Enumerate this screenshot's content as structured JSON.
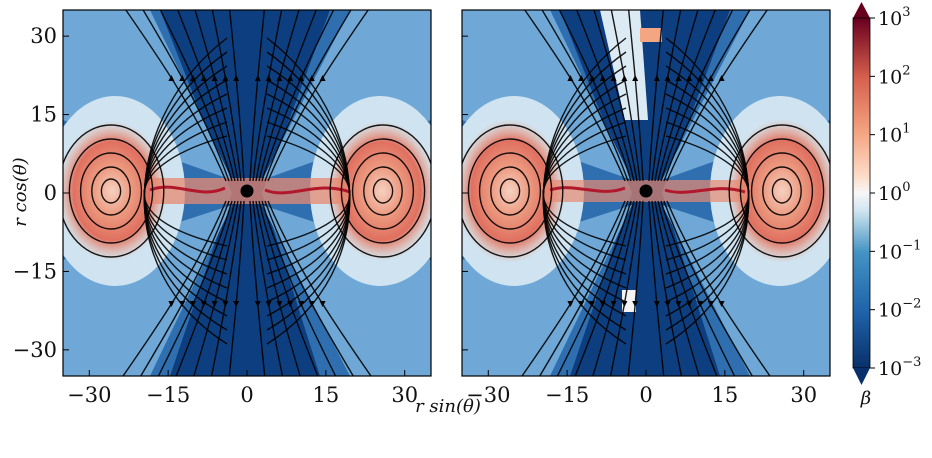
{
  "chart_data": {
    "type": "heatmap",
    "panels": [
      {
        "xlim": [
          -35,
          35
        ],
        "ylim": [
          -35,
          35
        ]
      },
      {
        "xlim": [
          -35,
          35
        ],
        "ylim": [
          -35,
          35
        ]
      }
    ],
    "xlabel": "r sin(θ)",
    "ylabel": "r cos(θ)",
    "xticks": [
      "−30",
      "−15",
      "0",
      "15",
      "30"
    ],
    "xtick_values": [
      -30,
      -15,
      0,
      15,
      30
    ],
    "yticks": [
      "30",
      "15",
      "0",
      "−15",
      "−30"
    ],
    "ytick_values": [
      30,
      15,
      0,
      -15,
      -30
    ],
    "colorbar": {
      "label": "β",
      "scale": "log",
      "range": [
        0.001,
        1000
      ],
      "ticks": [
        {
          "base": "10",
          "exp": "3",
          "value": 1000
        },
        {
          "base": "10",
          "exp": "2",
          "value": 100
        },
        {
          "base": "10",
          "exp": "1",
          "value": 10
        },
        {
          "base": "10",
          "exp": "0",
          "value": 1
        },
        {
          "base": "10",
          "exp": "−1",
          "value": 0.1
        },
        {
          "base": "10",
          "exp": "−2",
          "value": 0.01
        },
        {
          "base": "10",
          "exp": "−3",
          "value": 0.001
        }
      ],
      "colormap": "RdBu_r",
      "colors": {
        "low": "#08306b",
        "mid": "#f7f7f7",
        "high": "#67001f"
      }
    },
    "central_object": "black-hole-marker",
    "grid": false
  }
}
